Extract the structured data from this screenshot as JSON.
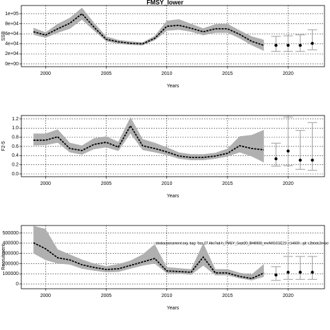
{
  "chart_data": [
    {
      "type": "ribbon-forecast",
      "title": "FMSY_lower",
      "xlabel": "Years",
      "ylabel": "SSB",
      "xlim": [
        1998,
        2023
      ],
      "xticks": [
        2000,
        2005,
        2010,
        2015,
        2020
      ],
      "ylim": [
        -5500,
        116400
      ],
      "yticks": [
        {
          "value": 0,
          "label": "0e+00"
        },
        {
          "value": 20000,
          "label": "2e+04"
        },
        {
          "value": 40000,
          "label": "4e+04"
        },
        {
          "value": 60000,
          "label": "6e+04"
        },
        {
          "value": 80000,
          "label": "8e+04"
        },
        {
          "value": 100000,
          "label": "1e+05"
        }
      ],
      "grid": true,
      "ribbon_color": "#b0b0b0",
      "line_color": "#000000",
      "bar_color": "#aaaaaa",
      "history": {
        "x": [
          1999,
          2000,
          2001,
          2002,
          2003,
          2004,
          2005,
          2006,
          2007,
          2008,
          2009,
          2010,
          2011,
          2012,
          2013,
          2014,
          2015,
          2016,
          2017,
          2018
        ],
        "values": [
          64000,
          57500,
          70000,
          81000,
          100000,
          73000,
          49000,
          44000,
          41000,
          40000,
          51000,
          75000,
          77000,
          71000,
          64000,
          70000,
          70000,
          59000,
          45000,
          37000
        ],
        "lower": [
          58000,
          52000,
          62000,
          70000,
          88000,
          66000,
          45000,
          40000,
          38000,
          37000,
          47000,
          66000,
          68000,
          64000,
          57000,
          62000,
          62000,
          51000,
          37000,
          26000
        ],
        "upper": [
          72000,
          63000,
          80000,
          92000,
          112000,
          82000,
          55000,
          48000,
          45000,
          43000,
          56000,
          86000,
          89000,
          80000,
          71000,
          79000,
          80000,
          67000,
          55000,
          48000
        ]
      },
      "forecast": {
        "x": [
          2019,
          2020,
          2021,
          2022
        ],
        "values": [
          37000,
          37000,
          37000,
          41000
        ],
        "lower": [
          25000,
          25000,
          25000,
          28000
        ],
        "upper": [
          55000,
          56000,
          58000,
          68000
        ]
      }
    },
    {
      "type": "ribbon-forecast",
      "xlabel": "Years",
      "ylabel": "F2-5",
      "xlim": [
        1998,
        2023
      ],
      "xticks": [
        2000,
        2005,
        2010,
        2015,
        2020
      ],
      "ylim": [
        -0.06,
        1.274
      ],
      "yticks": [
        {
          "value": 0,
          "label": "0.0"
        },
        0.2,
        0.4,
        0.6,
        0.8,
        {
          "value": 1,
          "label": "1.0"
        },
        1.2
      ],
      "grid": true,
      "ribbon_color": "#b0b0b0",
      "line_color": "#000000",
      "bar_color": "#aaaaaa",
      "history": {
        "x": [
          1999,
          2000,
          2001,
          2002,
          2003,
          2004,
          2005,
          2006,
          2007,
          2008,
          2009,
          2010,
          2011,
          2012,
          2013,
          2014,
          2015,
          2016,
          2017,
          2018
        ],
        "values": [
          0.735,
          0.735,
          0.81,
          0.555,
          0.51,
          0.645,
          0.69,
          0.585,
          1.05,
          0.615,
          0.555,
          0.48,
          0.39,
          0.36,
          0.36,
          0.39,
          0.45,
          0.615,
          0.555,
          0.525
        ],
        "lower": [
          0.62,
          0.63,
          0.68,
          0.47,
          0.42,
          0.54,
          0.58,
          0.5,
          0.88,
          0.52,
          0.47,
          0.41,
          0.33,
          0.3,
          0.3,
          0.33,
          0.38,
          0.47,
          0.38,
          0.25
        ],
        "upper": [
          0.88,
          0.88,
          0.97,
          0.68,
          0.62,
          0.78,
          0.82,
          0.7,
          1.24,
          0.76,
          0.68,
          0.58,
          0.47,
          0.43,
          0.43,
          0.46,
          0.55,
          0.82,
          0.85,
          0.96
        ]
      },
      "forecast": {
        "x": [
          2019,
          2020,
          2021,
          2022
        ],
        "values": [
          0.33,
          0.5,
          0.3,
          0.3
        ],
        "lower": [
          0.17,
          0.18,
          0.1,
          0.08
        ],
        "upper": [
          0.67,
          1.24,
          0.95,
          1.12
        ]
      }
    },
    {
      "type": "ribbon-forecast",
      "xlabel": "Years",
      "ylabel": "Recruitment",
      "annotation": "stockassessment.org, bag: 'bss.27.4bc7ad-h_FMSY_Sept20_BH0008_rev/WGCSE21', r14609 , git: c2bbdc2e4ae",
      "xlim": [
        1998,
        2023
      ],
      "xticks": [
        2000,
        2005,
        2010,
        2015,
        2020
      ],
      "ylim": [
        -47000,
        574000
      ],
      "yticks": [
        0,
        100000,
        200000,
        300000,
        400000,
        500000
      ],
      "grid": true,
      "ribbon_color": "#b0b0b0",
      "line_color": "#000000",
      "bar_color": "#aaaaaa",
      "history": {
        "x": [
          1999,
          2000,
          2001,
          2002,
          2003,
          2004,
          2005,
          2006,
          2007,
          2008,
          2009,
          2010,
          2011,
          2012,
          2013,
          2014,
          2015,
          2016,
          2017,
          2018
        ],
        "values": [
          405000,
          345000,
          257000,
          236000,
          189000,
          162000,
          142000,
          149000,
          182000,
          216000,
          250000,
          128000,
          122000,
          115000,
          264000,
          108000,
          108000,
          74000,
          54000,
          108000
        ],
        "lower": [
          300000,
          235000,
          200000,
          190000,
          150000,
          130000,
          115000,
          118000,
          150000,
          180000,
          200000,
          105000,
          100000,
          90000,
          180000,
          85000,
          85000,
          55000,
          35000,
          70000
        ],
        "upper": [
          570000,
          540000,
          340000,
          290000,
          240000,
          200000,
          175000,
          195000,
          230000,
          290000,
          390000,
          165000,
          155000,
          145000,
          400000,
          145000,
          145000,
          110000,
          95000,
          195000
        ]
      },
      "forecast": {
        "x": [
          2019,
          2020,
          2021,
          2022
        ],
        "values": [
          88000,
          115000,
          115000,
          115000
        ],
        "lower": [
          35000,
          45000,
          45000,
          45000
        ],
        "upper": [
          170000,
          270000,
          270000,
          270000
        ]
      }
    }
  ]
}
